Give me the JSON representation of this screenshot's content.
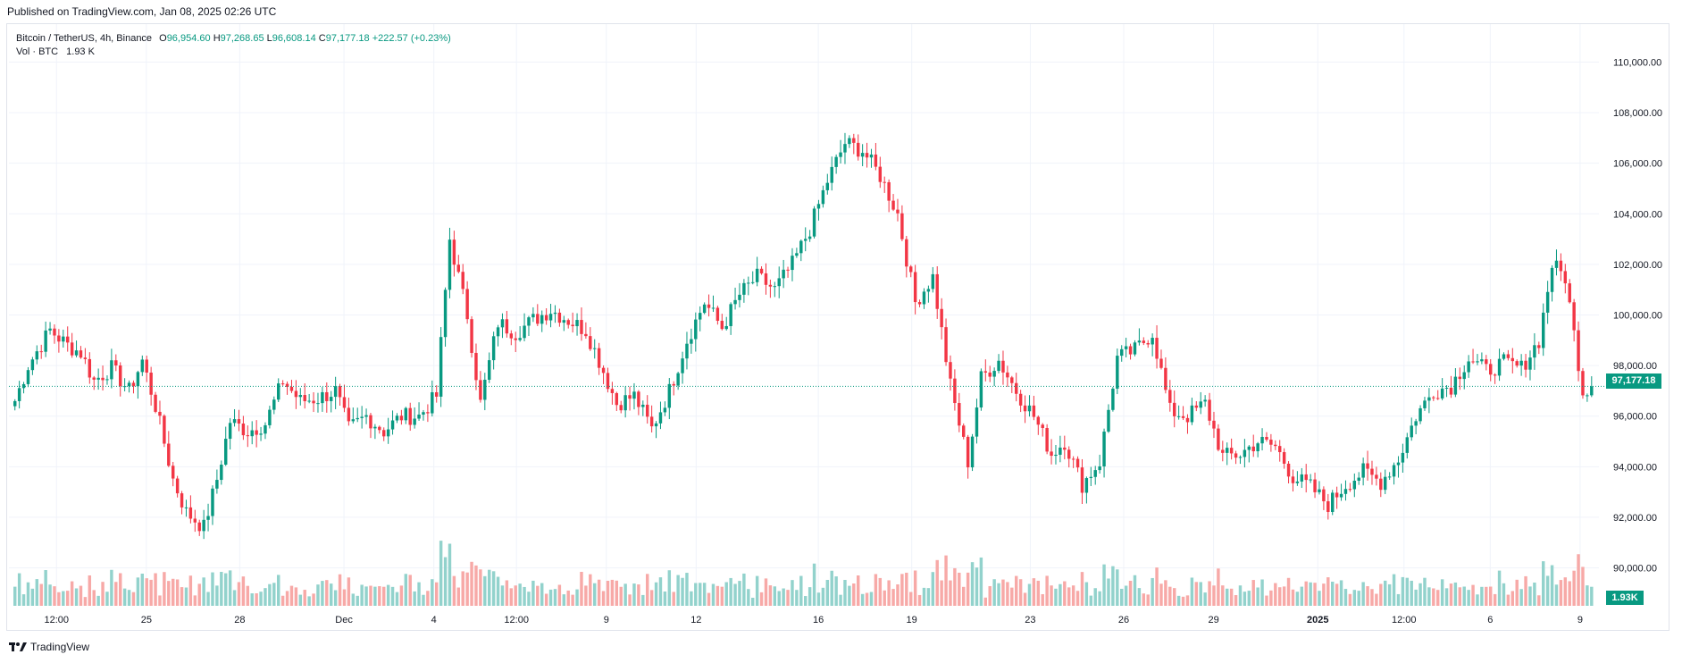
{
  "header": {
    "published": "Published on TradingView.com, Jan 08, 2025 02:26 UTC"
  },
  "legend": {
    "symbol": "Bitcoin / TetherUS, 4h, Binance",
    "o_label": "O",
    "o_value": "96,954.60",
    "h_label": "H",
    "h_value": "97,268.65",
    "l_label": "L",
    "l_value": "96,608.14",
    "c_label": "C",
    "c_value": "97,177.18",
    "change": "+222.57 (+0.23%)",
    "vol_label": "Vol · BTC",
    "vol_value": "1.93 K"
  },
  "price_tag": "97,177.18",
  "vol_tag": "1.93K",
  "footer": {
    "brand": "TradingView"
  },
  "colors": {
    "up": "#089981",
    "down": "#f23645",
    "up_vol": "#92d2cc",
    "down_vol": "#f7a9a7",
    "grid": "#f0f3fa"
  },
  "chart_data": {
    "type": "candlestick",
    "timeframe": "4h",
    "ylim": [
      88500,
      111500
    ],
    "y_ticks": [
      "110,000.00",
      "108,000.00",
      "106,000.00",
      "104,000.00",
      "102,000.00",
      "100,000.00",
      "98,000.00",
      "96,000.00",
      "94,000.00",
      "92,000.00",
      "90,000.00"
    ],
    "y_tick_values": [
      110000,
      108000,
      106000,
      104000,
      102000,
      100000,
      98000,
      96000,
      94000,
      92000,
      90000
    ],
    "x_ticks": [
      "12:00",
      "25",
      "28",
      "Dec",
      "4",
      "12:00",
      "9",
      "12",
      "16",
      "19",
      "23",
      "26",
      "29",
      "2025",
      "12:00",
      "6",
      "9"
    ],
    "last_price": 97177.18,
    "waypoints": [
      [
        0,
        96600
      ],
      [
        3,
        98000
      ],
      [
        8,
        99400
      ],
      [
        12,
        98800
      ],
      [
        15,
        98500
      ],
      [
        18,
        97400
      ],
      [
        22,
        97900
      ],
      [
        26,
        97000
      ],
      [
        29,
        98200
      ],
      [
        32,
        96400
      ],
      [
        36,
        93500
      ],
      [
        39,
        92200
      ],
      [
        43,
        91600
      ],
      [
        46,
        93500
      ],
      [
        49,
        95800
      ],
      [
        53,
        95400
      ],
      [
        57,
        95700
      ],
      [
        61,
        97400
      ],
      [
        65,
        96600
      ],
      [
        69,
        96700
      ],
      [
        73,
        97000
      ],
      [
        76,
        95500
      ],
      [
        80,
        96000
      ],
      [
        84,
        95400
      ],
      [
        88,
        96000
      ],
      [
        92,
        96000
      ],
      [
        96,
        96800
      ],
      [
        99,
        103000
      ],
      [
        103,
        100000
      ],
      [
        106,
        96500
      ],
      [
        110,
        99700
      ],
      [
        114,
        99300
      ],
      [
        118,
        99800
      ],
      [
        122,
        100200
      ],
      [
        126,
        99800
      ],
      [
        130,
        99400
      ],
      [
        133,
        98200
      ],
      [
        137,
        96500
      ],
      [
        141,
        96800
      ],
      [
        145,
        95500
      ],
      [
        149,
        97000
      ],
      [
        153,
        99000
      ],
      [
        157,
        100500
      ],
      [
        161,
        99500
      ],
      [
        165,
        100800
      ],
      [
        169,
        101500
      ],
      [
        173,
        101000
      ],
      [
        177,
        102000
      ],
      [
        181,
        103400
      ],
      [
        185,
        105300
      ],
      [
        189,
        106800
      ],
      [
        193,
        106500
      ],
      [
        197,
        105500
      ],
      [
        201,
        104000
      ],
      [
        205,
        100500
      ],
      [
        209,
        101500
      ],
      [
        213,
        97200
      ],
      [
        217,
        94200
      ],
      [
        220,
        97500
      ],
      [
        224,
        98200
      ],
      [
        228,
        97000
      ],
      [
        232,
        96000
      ],
      [
        236,
        94500
      ],
      [
        239,
        95000
      ],
      [
        243,
        93300
      ],
      [
        247,
        94200
      ],
      [
        251,
        98300
      ],
      [
        255,
        98600
      ],
      [
        259,
        99300
      ],
      [
        263,
        96200
      ],
      [
        267,
        96000
      ],
      [
        271,
        96500
      ],
      [
        275,
        94400
      ],
      [
        279,
        94500
      ],
      [
        283,
        95000
      ],
      [
        287,
        94800
      ],
      [
        291,
        93600
      ],
      [
        295,
        93200
      ],
      [
        299,
        92500
      ],
      [
        303,
        93300
      ],
      [
        307,
        93800
      ],
      [
        311,
        93400
      ],
      [
        315,
        94300
      ],
      [
        319,
        96000
      ],
      [
        323,
        97000
      ],
      [
        327,
        97200
      ],
      [
        331,
        98300
      ],
      [
        335,
        97800
      ],
      [
        339,
        98100
      ],
      [
        343,
        97900
      ],
      [
        347,
        99000
      ],
      [
        350,
        102000
      ],
      [
        353,
        101500
      ],
      [
        357,
        97000
      ],
      [
        359,
        97177
      ]
    ]
  }
}
